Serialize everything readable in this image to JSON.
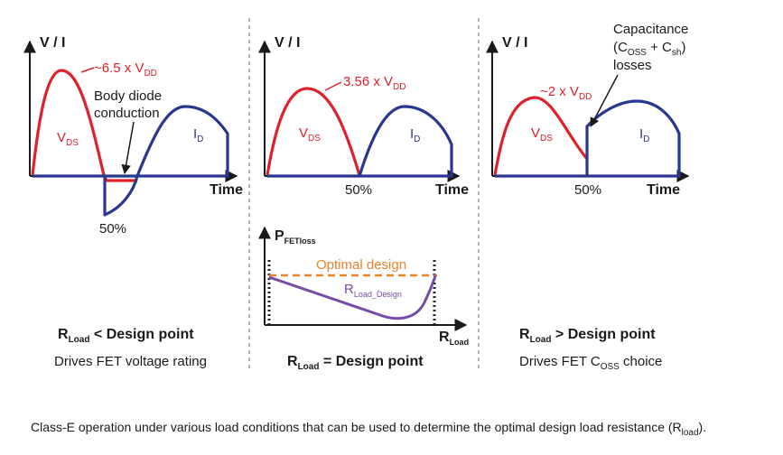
{
  "left_panel": {
    "axis_label": "V / I",
    "peak_label": "~6.5 x V",
    "peak_sub": "DD",
    "body_diode_line1": "Body diode",
    "body_diode_line2": "conduction",
    "vds_label": "V",
    "vds_sub": "DS",
    "id_label": "I",
    "id_sub": "D",
    "time_label": "Time",
    "pct_label": "50%",
    "condition_main": "R",
    "condition_sub": "Load",
    "condition_rest": " < Design point",
    "note": "Drives FET voltage rating"
  },
  "center_panel": {
    "axis_label": "V / I",
    "peak_label": "3.56 x V",
    "peak_sub": "DD",
    "vds_label": "V",
    "vds_sub": "DS",
    "id_label": "I",
    "id_sub": "D",
    "time_label": "Time",
    "pct_label": "50%"
  },
  "loss_plot": {
    "y_label": "P",
    "y_sub": "FETloss",
    "optimal_label": "Optimal design",
    "curve_label": "R",
    "curve_sub": "Load_Design",
    "x_label": "R",
    "x_sub": "Load",
    "condition_main": "R",
    "condition_sub": "Load",
    "condition_rest": " = Design point"
  },
  "right_panel": {
    "axis_label": "V / I",
    "cap_line1": "Capacitance",
    "cap_open": "(C",
    "cap_oss": "OSS",
    "cap_plus": " + C",
    "cap_sh": "sh",
    "cap_close": ")",
    "cap_line3": "losses",
    "peak_label": "~2 x V",
    "peak_sub": "DD",
    "vds_label": "V",
    "vds_sub": "DS",
    "id_label": "I",
    "id_sub": "D",
    "time_label": "Time",
    "pct_label": "50%",
    "condition_main": "R",
    "condition_sub": "Load",
    "condition_rest": " > Design point",
    "note_main": "Drives FET C",
    "note_sub": "OSS",
    "note_rest": " choice"
  },
  "caption": {
    "main": "Class-E operation under various load conditions that can be used to determine the optimal design load resistance (R",
    "sub": "load",
    "end": ")."
  },
  "colors": {
    "vds": "#e0202a",
    "id": "#2a3790",
    "optimal": "#e8842a",
    "loss_curve": "#7a4aa8"
  }
}
